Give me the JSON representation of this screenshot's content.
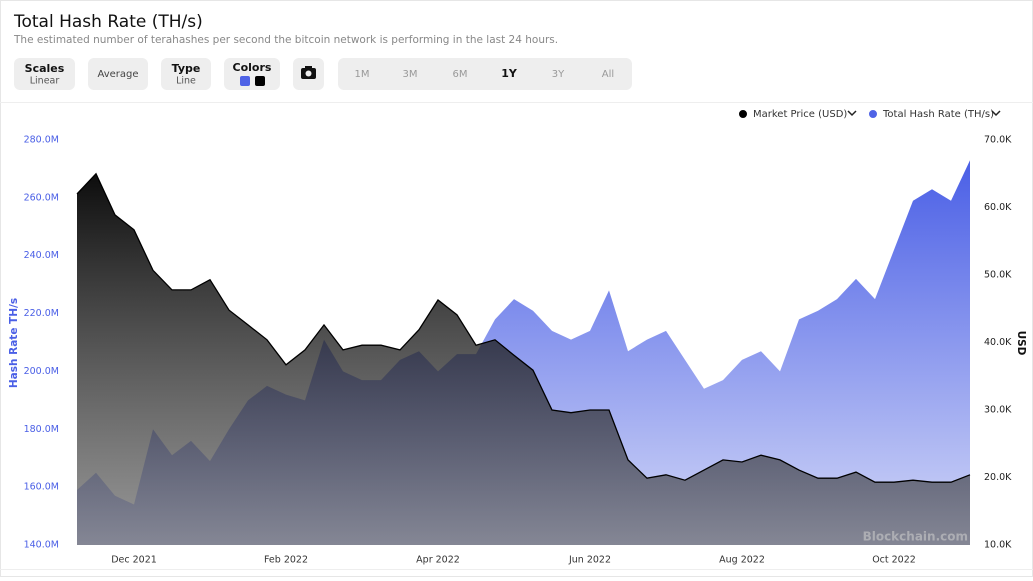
{
  "header": {
    "title": "Total Hash Rate (TH/s)",
    "subtitle": "The estimated number of terahashes per second the bitcoin network is performing in the last 24 hours."
  },
  "toolbar": {
    "scales": {
      "label": "Scales",
      "value": "Linear"
    },
    "average": "Average",
    "type": {
      "label": "Type",
      "value": "Line"
    },
    "colors": "Colors",
    "ranges": [
      "1M",
      "3M",
      "6M",
      "1Y",
      "3Y",
      "All"
    ],
    "active_range": "1Y"
  },
  "chart_data": {
    "type": "area",
    "watermark": "Blockchain.com",
    "y_label": "Hash Rate TH/s",
    "y2_label": "USD",
    "categories": [
      null,
      null,
      null,
      "Dec 2021",
      null,
      null,
      null,
      null,
      null,
      null,
      null,
      "Feb 2022",
      null,
      null,
      null,
      null,
      null,
      null,
      null,
      "Apr 2022",
      null,
      null,
      null,
      null,
      null,
      null,
      null,
      "Jun 2022",
      null,
      null,
      null,
      null,
      null,
      null,
      null,
      "Aug 2022",
      null,
      null,
      null,
      null,
      null,
      null,
      null,
      "Oct 2022",
      null,
      null,
      null,
      null
    ],
    "ylim": [
      140,
      280
    ],
    "yticks": [
      {
        "value": 140,
        "label": "140.0M"
      },
      {
        "value": 160,
        "label": "160.0M"
      },
      {
        "value": 180,
        "label": "180.0M"
      },
      {
        "value": 200,
        "label": "200.0M"
      },
      {
        "value": 220,
        "label": "220.0M"
      },
      {
        "value": 240,
        "label": "240.0M"
      },
      {
        "value": 260,
        "label": "260.0M"
      },
      {
        "value": 280,
        "label": "280.0M"
      }
    ],
    "y2lim": [
      10,
      70
    ],
    "y2ticks": [
      {
        "value": 10,
        "label": "10.0K"
      },
      {
        "value": 20,
        "label": "20.0K"
      },
      {
        "value": 30,
        "label": "30.0K"
      },
      {
        "value": 40,
        "label": "40.0K"
      },
      {
        "value": 50,
        "label": "50.0K"
      },
      {
        "value": 60,
        "label": "60.0K"
      },
      {
        "value": 70,
        "label": "70.0K"
      }
    ],
    "series": [
      {
        "name": "Market Price (USD)",
        "color": "#000000",
        "axis": "y2",
        "values": [
          62,
          65,
          58.9,
          56.7,
          50.7,
          47.8,
          47.8,
          49.3,
          44.8,
          42.6,
          40.4,
          36.7,
          38.9,
          42.6,
          38.9,
          39.6,
          39.6,
          38.9,
          41.9,
          46.3,
          44.1,
          39.6,
          40.4,
          38.1,
          35.9,
          30,
          29.6,
          30,
          30,
          22.6,
          19.9,
          20.4,
          19.6,
          21.1,
          22.6,
          22.3,
          23.3,
          22.6,
          21.1,
          19.9,
          19.9,
          20.8,
          19.3,
          19.3,
          19.6,
          19.3,
          19.3,
          20.4
        ]
      },
      {
        "name": "Total Hash Rate (TH/s)",
        "color": "#4f63e6",
        "axis": "y",
        "values": [
          159,
          165,
          157,
          154,
          180,
          171,
          176,
          169,
          180,
          190,
          195,
          192,
          190,
          211,
          200,
          197,
          197,
          204,
          207,
          200,
          206,
          206,
          218,
          225,
          221,
          214,
          211,
          214,
          228,
          207,
          211,
          214,
          204,
          194,
          197,
          204,
          207,
          200,
          218,
          221,
          225,
          232,
          225,
          242,
          259,
          263,
          259,
          273
        ]
      }
    ]
  }
}
